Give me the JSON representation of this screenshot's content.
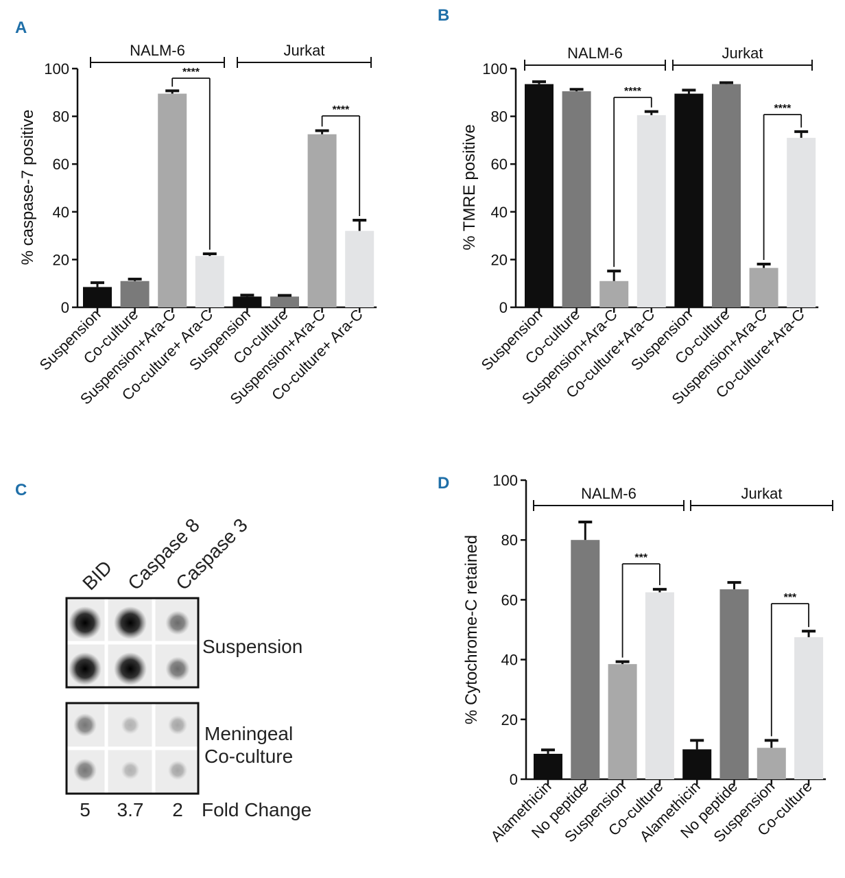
{
  "panels": {
    "A": "A",
    "B": "B",
    "C": "C",
    "D": "D"
  },
  "chart_data": [
    {
      "panel": "A",
      "type": "bar",
      "ylabel": "% caspase-7 positive",
      "ylim": [
        0,
        100
      ],
      "yticks": [
        0,
        20,
        40,
        60,
        80,
        100
      ],
      "groups": [
        "NALM-6",
        "Jurkat"
      ],
      "categories": [
        "Suspension",
        "Co-culture",
        "Suspension+Ara-C",
        "Co-culture+ Ara-C",
        "Suspension",
        "Co-culture",
        "Suspension+Ara-C",
        "Co-culture+ Ara-C"
      ],
      "values": [
        8.5,
        11,
        89.5,
        21.5,
        4.5,
        4.5,
        72.5,
        32
      ],
      "errors": [
        1.8,
        0.8,
        1.2,
        0.9,
        0.6,
        0.5,
        1.5,
        4.5
      ],
      "colors": [
        "#0e0e0e",
        "#7a7a7a",
        "#a9a9a9",
        "#e3e4e6",
        "#0e0e0e",
        "#7a7a7a",
        "#a9a9a9",
        "#e3e4e6"
      ],
      "significance": [
        {
          "from": 2,
          "to": 3,
          "label": "****"
        },
        {
          "from": 6,
          "to": 7,
          "label": "****"
        }
      ]
    },
    {
      "panel": "B",
      "type": "bar",
      "ylabel": "% TMRE positive",
      "ylim": [
        0,
        100
      ],
      "yticks": [
        0,
        20,
        40,
        60,
        80,
        100
      ],
      "groups": [
        "NALM-6",
        "Jurkat"
      ],
      "categories": [
        "Suspension",
        "Co-culture",
        "Suspension+Ara-C",
        "Co-culture+Ara-C",
        "Suspension",
        "Co-culture",
        "Suspension+Ara-C",
        "Co-culture+Ara-C"
      ],
      "values": [
        93.5,
        90.5,
        11,
        80.5,
        89.5,
        93.5,
        16.5,
        71
      ],
      "errors": [
        1,
        0.8,
        4.2,
        1.5,
        1.5,
        0.6,
        1.6,
        2.6
      ],
      "colors": [
        "#0e0e0e",
        "#7a7a7a",
        "#a9a9a9",
        "#e3e4e6",
        "#0e0e0e",
        "#7a7a7a",
        "#a9a9a9",
        "#e3e4e6"
      ],
      "significance": [
        {
          "from": 2,
          "to": 3,
          "label": "****"
        },
        {
          "from": 6,
          "to": 7,
          "label": "****"
        }
      ]
    },
    {
      "panel": "D",
      "type": "bar",
      "ylabel": "% Cytochrome-C retained",
      "ylim": [
        0,
        100
      ],
      "yticks": [
        0,
        20,
        40,
        60,
        80,
        100
      ],
      "groups": [
        "NALM-6",
        "Jurkat"
      ],
      "categories": [
        "Alamethicin",
        "No peptide",
        "Suspension",
        "Co-culture",
        "Alamethicin",
        "No peptide",
        "Suspension",
        "Co-culture"
      ],
      "values": [
        8.5,
        80,
        38.5,
        62.5,
        10,
        63.5,
        10.5,
        47.5
      ],
      "errors": [
        1.3,
        6,
        0.8,
        1,
        3,
        2.3,
        2.5,
        2
      ],
      "colors": [
        "#0e0e0e",
        "#7a7a7a",
        "#a9a9a9",
        "#e3e4e6",
        "#0e0e0e",
        "#7a7a7a",
        "#a9a9a9",
        "#e3e4e6"
      ],
      "significance": [
        {
          "from": 2,
          "to": 3,
          "label": "***"
        },
        {
          "from": 6,
          "to": 7,
          "label": "***"
        }
      ]
    }
  ],
  "blot": {
    "columns": [
      "BID",
      "Caspase 8",
      "Caspase 3"
    ],
    "rows": [
      "Suspension",
      "Meningeal",
      "Co-culture"
    ],
    "fold_change_values": [
      "5",
      "3.7",
      "2"
    ],
    "fold_change_label": "Fold Change",
    "intensity_top": [
      1.0,
      1.0,
      0.55
    ],
    "intensity_bottom": [
      0.5,
      0.25,
      0.3
    ]
  }
}
